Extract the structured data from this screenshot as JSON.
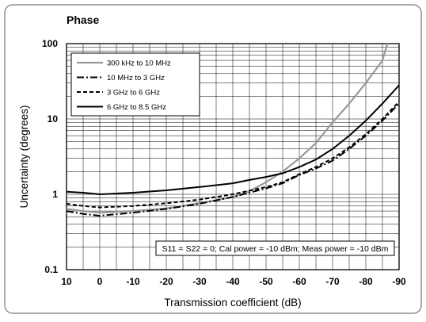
{
  "chart_data": {
    "type": "line",
    "title": "Phase",
    "xlabel": "Transmission coefficient (dB)",
    "ylabel": "Uncertainty (degrees)",
    "xlim": [
      10,
      -90
    ],
    "ylim": [
      0.1,
      100
    ],
    "yscale": "log",
    "grid": true,
    "legend_position": "top-left",
    "x_ticks": [
      "10",
      "0",
      "-10",
      "-20",
      "-30",
      "-40",
      "-50",
      "-60",
      "-70",
      "-80",
      "-90"
    ],
    "y_ticks": [
      "100",
      "10",
      "1",
      "0.1"
    ],
    "annotation": "S11 = S22 = 0; Cal power = -10 dBm; Meas power = -10 dBm",
    "series": [
      {
        "name": "300 kHz to 10 MHz",
        "style": "solid-gray",
        "color": "#999999",
        "points": [
          [
            10,
            0.64
          ],
          [
            5,
            0.6
          ],
          [
            0,
            0.57
          ],
          [
            -10,
            0.6
          ],
          [
            -20,
            0.65
          ],
          [
            -30,
            0.76
          ],
          [
            -40,
            0.92
          ],
          [
            -45,
            1.1
          ],
          [
            -50,
            1.45
          ],
          [
            -55,
            2.0
          ],
          [
            -60,
            3.0
          ],
          [
            -65,
            4.8
          ],
          [
            -70,
            9.0
          ],
          [
            -75,
            16
          ],
          [
            -80,
            30
          ],
          [
            -85,
            60
          ],
          [
            -86.5,
            100
          ]
        ]
      },
      {
        "name": "10 MHz to 3 GHz",
        "style": "dash-dot",
        "color": "#000000",
        "points": [
          [
            10,
            0.6
          ],
          [
            5,
            0.55
          ],
          [
            0,
            0.52
          ],
          [
            -10,
            0.57
          ],
          [
            -20,
            0.64
          ],
          [
            -30,
            0.75
          ],
          [
            -40,
            0.92
          ],
          [
            -50,
            1.2
          ],
          [
            -55,
            1.4
          ],
          [
            -60,
            1.8
          ],
          [
            -65,
            2.2
          ],
          [
            -70,
            2.8
          ],
          [
            -75,
            4.0
          ],
          [
            -80,
            6.0
          ],
          [
            -85,
            9.5
          ],
          [
            -90,
            16
          ]
        ]
      },
      {
        "name": "3 GHz to 6 GHz",
        "style": "dashed",
        "color": "#000000",
        "points": [
          [
            10,
            0.75
          ],
          [
            5,
            0.7
          ],
          [
            0,
            0.67
          ],
          [
            -10,
            0.7
          ],
          [
            -20,
            0.76
          ],
          [
            -30,
            0.85
          ],
          [
            -40,
            1.0
          ],
          [
            -50,
            1.25
          ],
          [
            -55,
            1.45
          ],
          [
            -60,
            1.85
          ],
          [
            -65,
            2.3
          ],
          [
            -70,
            3.0
          ],
          [
            -75,
            4.2
          ],
          [
            -80,
            6.3
          ],
          [
            -85,
            10
          ],
          [
            -90,
            17
          ]
        ]
      },
      {
        "name": "6 GHz to 8.5 GHz",
        "style": "solid",
        "color": "#000000",
        "points": [
          [
            10,
            1.08
          ],
          [
            5,
            1.05
          ],
          [
            0,
            1.0
          ],
          [
            -10,
            1.05
          ],
          [
            -20,
            1.13
          ],
          [
            -30,
            1.25
          ],
          [
            -40,
            1.4
          ],
          [
            -45,
            1.55
          ],
          [
            -50,
            1.7
          ],
          [
            -55,
            1.9
          ],
          [
            -60,
            2.3
          ],
          [
            -65,
            2.9
          ],
          [
            -70,
            4.0
          ],
          [
            -75,
            6.0
          ],
          [
            -80,
            9.5
          ],
          [
            -85,
            16
          ],
          [
            -90,
            28
          ]
        ]
      }
    ]
  }
}
